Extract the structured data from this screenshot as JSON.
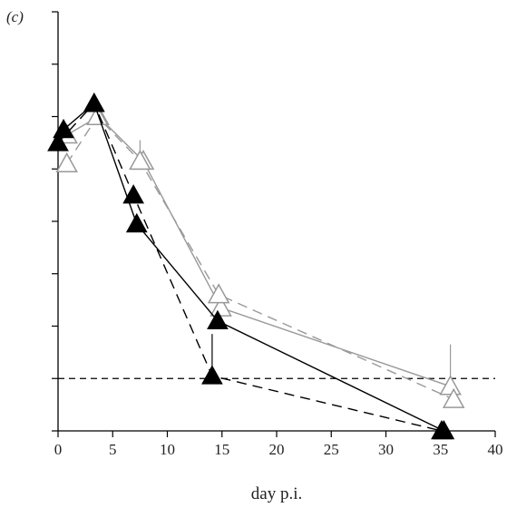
{
  "chart_data": {
    "type": "line",
    "panel_label": "(c)",
    "xlabel": "day p.i.",
    "ylabel": "",
    "xlim": [
      0,
      40
    ],
    "ylim": [
      0,
      8
    ],
    "x_ticks": [
      0,
      5,
      10,
      15,
      20,
      25,
      30,
      35,
      40
    ],
    "y_ticks": [
      0,
      1,
      2,
      3,
      4,
      5,
      6,
      7,
      8
    ],
    "y_tick_labels_shown": false,
    "grid": false,
    "legend": "none",
    "reference_line": {
      "y": 1.0,
      "style": "dashed",
      "color": "#000000"
    },
    "series": [
      {
        "marker": "filled-triangle",
        "color": "#000000",
        "line": "solid",
        "x": [
          0.5,
          3.3,
          7.2,
          14.6,
          35.3
        ],
        "y": [
          5.75,
          6.25,
          3.95,
          2.1,
          0.0
        ],
        "error_up": [
          0,
          0,
          0,
          0,
          0
        ],
        "error_down": [
          0,
          0,
          0,
          0,
          0
        ]
      },
      {
        "marker": "filled-triangle",
        "color": "#000000",
        "line": "dashed",
        "x": [
          0.0,
          3.3,
          6.9,
          14.1,
          35.1
        ],
        "y": [
          5.5,
          6.25,
          4.5,
          1.05,
          0.0
        ],
        "error_up": [
          0,
          0,
          0,
          0.8,
          0
        ],
        "error_down": [
          0,
          0,
          0,
          0,
          0
        ]
      },
      {
        "marker": "open-triangle",
        "color": "#999999",
        "line": "solid",
        "x": [
          0.8,
          3.7,
          7.8,
          14.9,
          35.9
        ],
        "y": [
          5.65,
          6.0,
          5.15,
          2.35,
          0.85
        ],
        "error_up": [
          0,
          0,
          0,
          0,
          0.8
        ],
        "error_down": [
          0,
          0,
          0,
          0,
          0
        ]
      },
      {
        "marker": "open-triangle",
        "color": "#999999",
        "line": "dashed",
        "x": [
          0.8,
          3.6,
          7.5,
          14.7,
          36.2
        ],
        "y": [
          5.1,
          6.0,
          5.15,
          2.6,
          0.6
        ],
        "error_up": [
          0,
          0,
          0.4,
          0,
          0
        ],
        "error_down": [
          0,
          0,
          0,
          0,
          0
        ]
      }
    ]
  }
}
